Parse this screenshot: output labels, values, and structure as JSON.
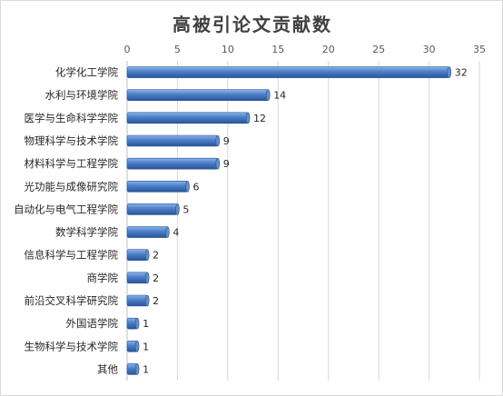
{
  "chart_data": {
    "type": "bar",
    "orientation": "horizontal",
    "title": "高被引论文贡献数",
    "xlabel": "",
    "ylabel": "",
    "xlim": [
      0,
      35
    ],
    "x_ticks": [
      0,
      5,
      10,
      15,
      20,
      25,
      30,
      35
    ],
    "x_axis_position": "top",
    "grid": "vertical",
    "legend": "none",
    "bar_color": "#4A7EC7",
    "categories": [
      "化学化工学院",
      "水利与环境学院",
      "医学与生命科学学院",
      "物理科学与技术学院",
      "材料科学与工程学院",
      "光功能与成像研究院",
      "自动化与电气工程学院",
      "数学科学学院",
      "信息科学与工程学院",
      "商学院",
      "前沿交叉科学研究院",
      "外国语学院",
      "生物科学与技术学院",
      "其他"
    ],
    "values": [
      32,
      14,
      12,
      9,
      9,
      6,
      5,
      4,
      2,
      2,
      2,
      1,
      1,
      1
    ],
    "data_labels": true
  }
}
